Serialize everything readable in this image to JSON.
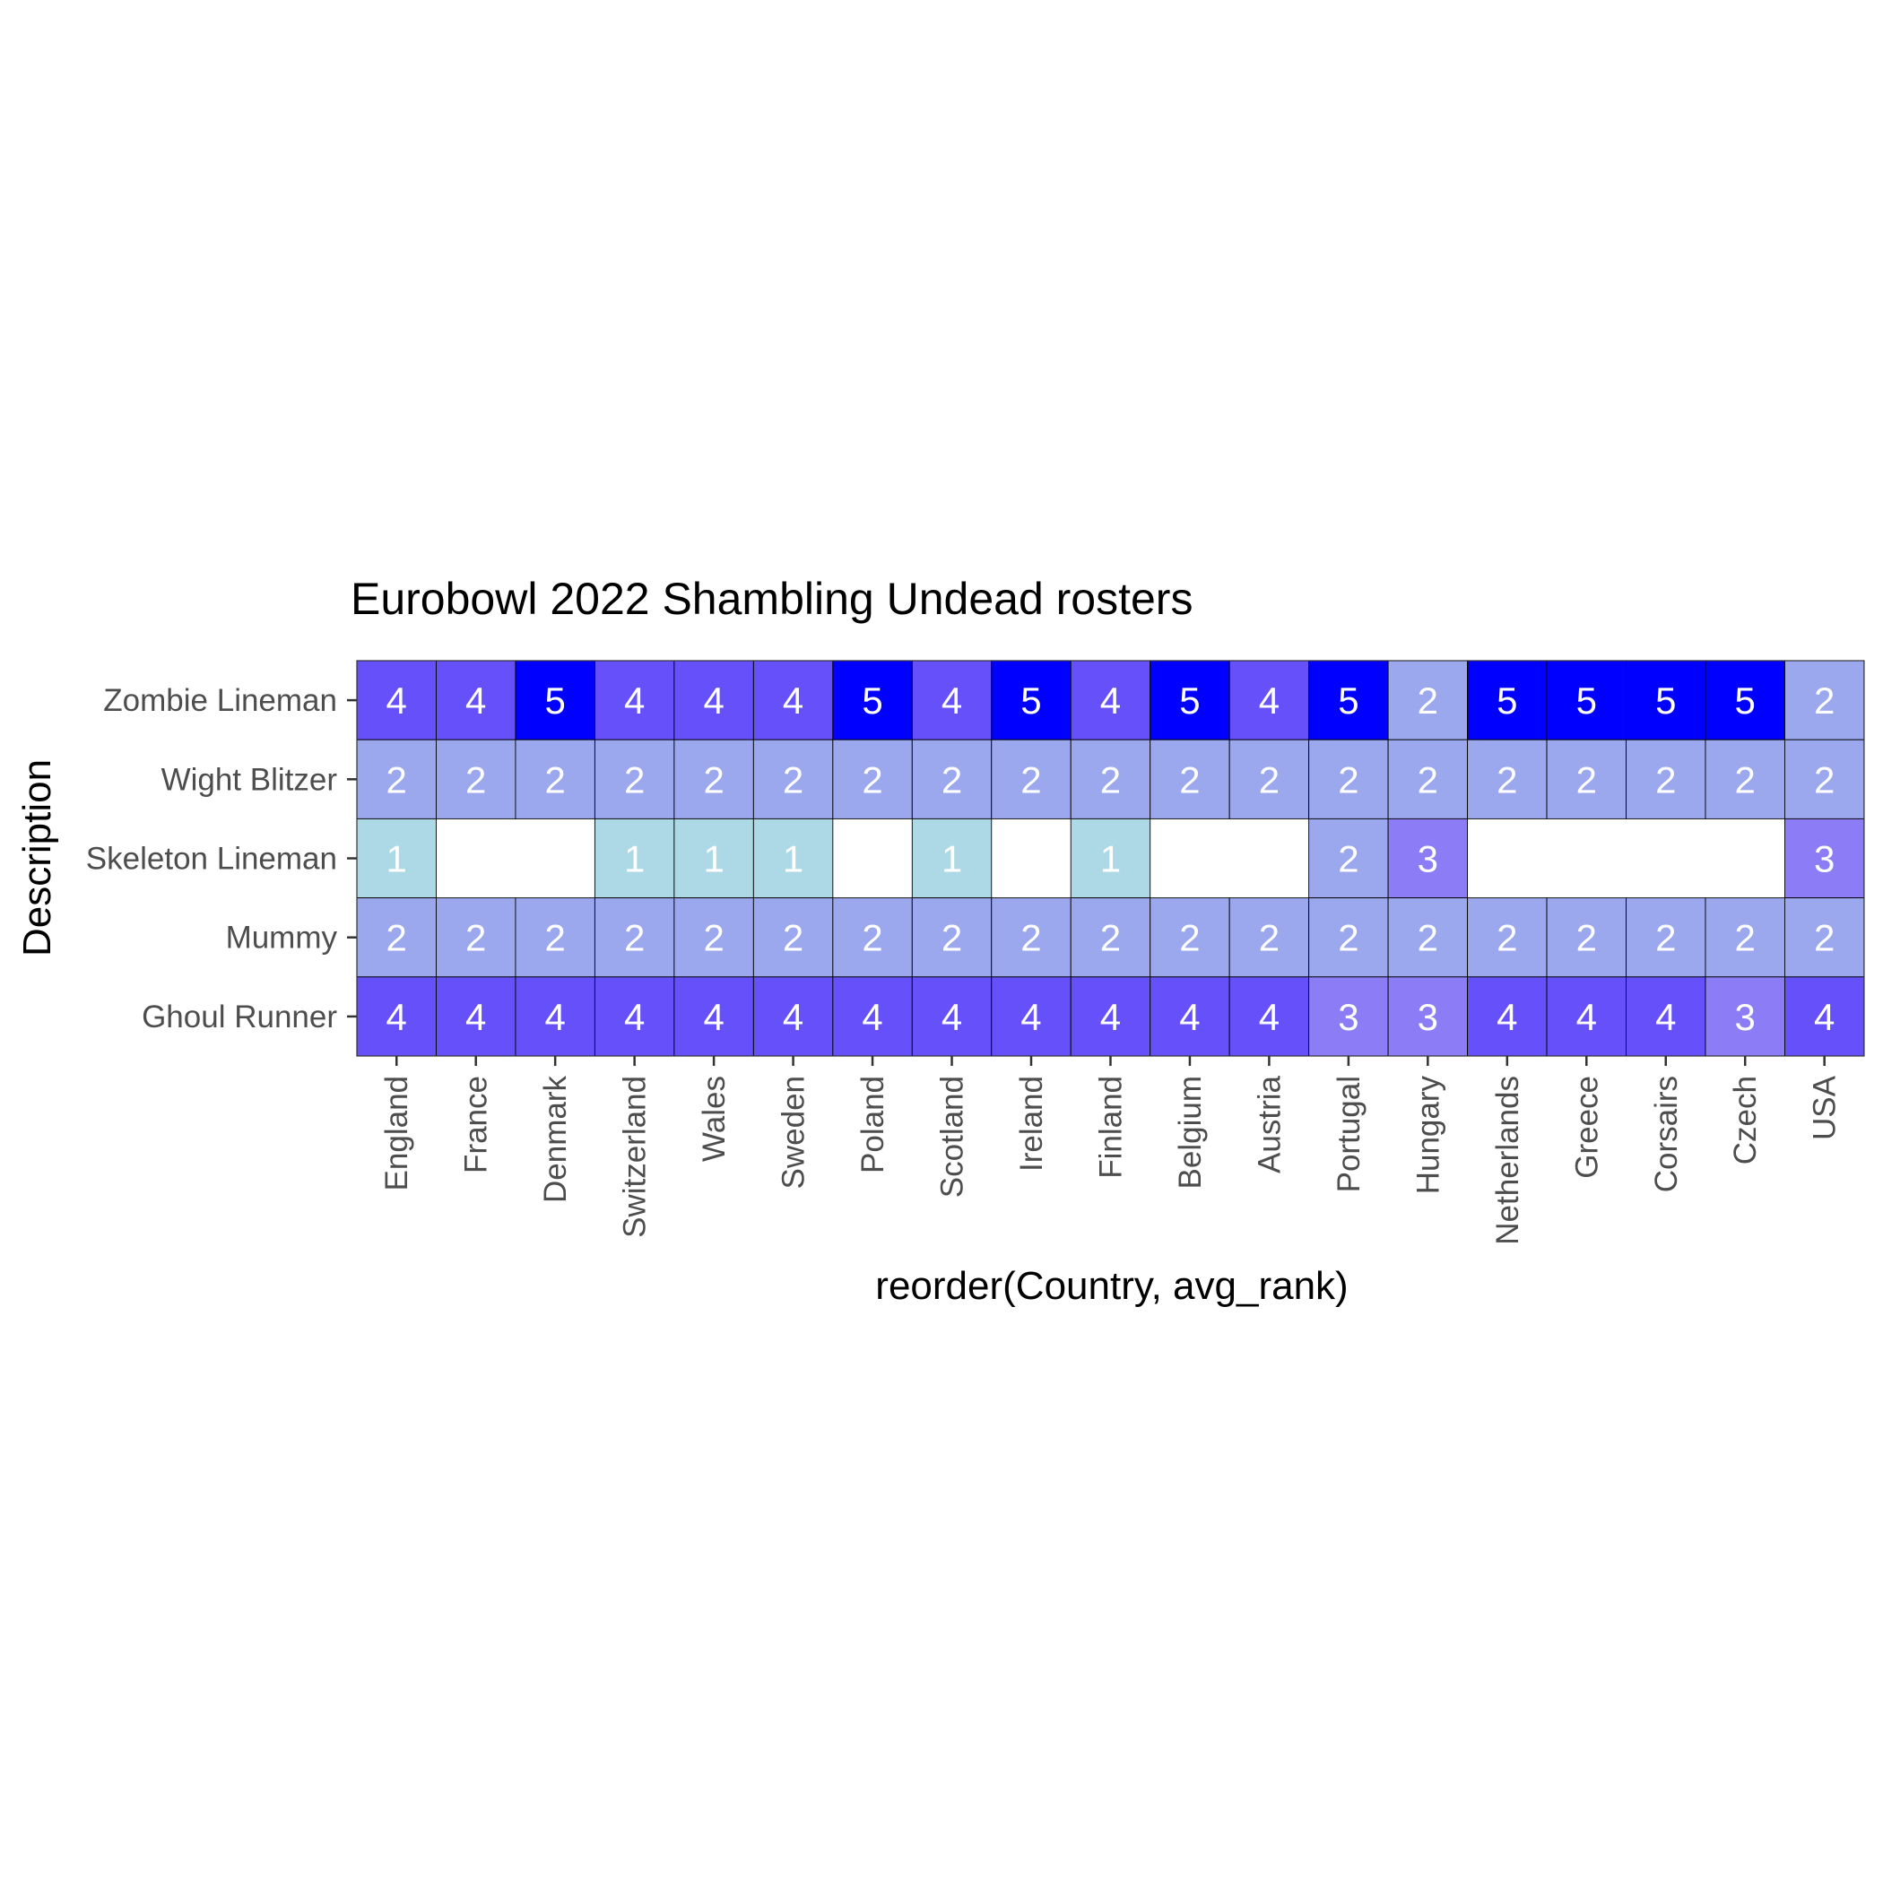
{
  "chart_data": {
    "type": "heatmap",
    "title": "Eurobowl 2022 Shambling Undead rosters",
    "xlabel": "reorder(Country, avg_rank)",
    "ylabel": "Description",
    "x_categories": [
      "England",
      "France",
      "Denmark",
      "Switzerland",
      "Wales",
      "Sweden",
      "Poland",
      "Scotland",
      "Ireland",
      "Finland",
      "Belgium",
      "Austria",
      "Portugal",
      "Hungary",
      "Netherlands",
      "Greece",
      "Corsairs",
      "Czech",
      "USA"
    ],
    "y_categories": [
      "Zombie Lineman",
      "Wight Blitzer",
      "Skeleton Lineman",
      "Mummy",
      "Ghoul Runner"
    ],
    "values": [
      [
        4,
        4,
        5,
        4,
        4,
        4,
        5,
        4,
        5,
        4,
        5,
        4,
        5,
        2,
        5,
        5,
        5,
        5,
        2
      ],
      [
        2,
        2,
        2,
        2,
        2,
        2,
        2,
        2,
        2,
        2,
        2,
        2,
        2,
        2,
        2,
        2,
        2,
        2,
        2
      ],
      [
        1,
        null,
        null,
        1,
        1,
        1,
        null,
        1,
        null,
        1,
        null,
        null,
        2,
        3,
        null,
        null,
        null,
        null,
        3
      ],
      [
        2,
        2,
        2,
        2,
        2,
        2,
        2,
        2,
        2,
        2,
        2,
        2,
        2,
        2,
        2,
        2,
        2,
        2,
        2
      ],
      [
        4,
        4,
        4,
        4,
        4,
        4,
        4,
        4,
        4,
        4,
        4,
        4,
        3,
        3,
        4,
        4,
        4,
        3,
        4
      ]
    ],
    "color_scale": {
      "1": "#add8e6",
      "2": "#9ba8ee",
      "3": "#8c7cf6",
      "4": "#6650fa",
      "5": "#0000ff"
    },
    "label_color": "#ffffff",
    "grid": false,
    "legend": "none"
  }
}
